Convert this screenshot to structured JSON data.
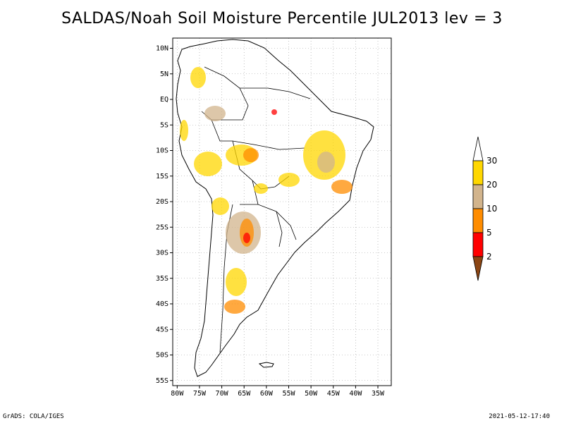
{
  "title": "SALDAS/Noah Soil Moisture Percentile JUL2013 lev = 3",
  "map": {
    "lat_labels": [
      "10N",
      "5N",
      "EQ",
      "5S",
      "10S",
      "15S",
      "20S",
      "25S",
      "30S",
      "35S",
      "40S",
      "45S",
      "50S",
      "55S"
    ],
    "lat_values": [
      10,
      5,
      0,
      -5,
      -10,
      -15,
      -20,
      -25,
      -30,
      -35,
      -40,
      -45,
      -50,
      -55
    ],
    "lon_labels": [
      "80W",
      "75W",
      "70W",
      "65W",
      "60W",
      "55W",
      "50W",
      "45W",
      "40W",
      "35W"
    ],
    "lon_values": [
      -80,
      -75,
      -70,
      -65,
      -60,
      -55,
      -50,
      -45,
      -40,
      -35
    ],
    "extent": {
      "lon_min": -81,
      "lon_max": -32,
      "lat_min": -56,
      "lat_max": 12
    },
    "gridlines": "dotted"
  },
  "legend": {
    "labels": [
      "2",
      "5",
      "10",
      "20",
      "30"
    ],
    "colors": [
      "#8B4513",
      "#FF0000",
      "#FF8C00",
      "#D2B48C",
      "#FFD700",
      "#FFFFFF"
    ]
  },
  "footer": {
    "credit": "GrADS: COLA/IGES",
    "timestamp": "2021-05-12-17:40"
  }
}
